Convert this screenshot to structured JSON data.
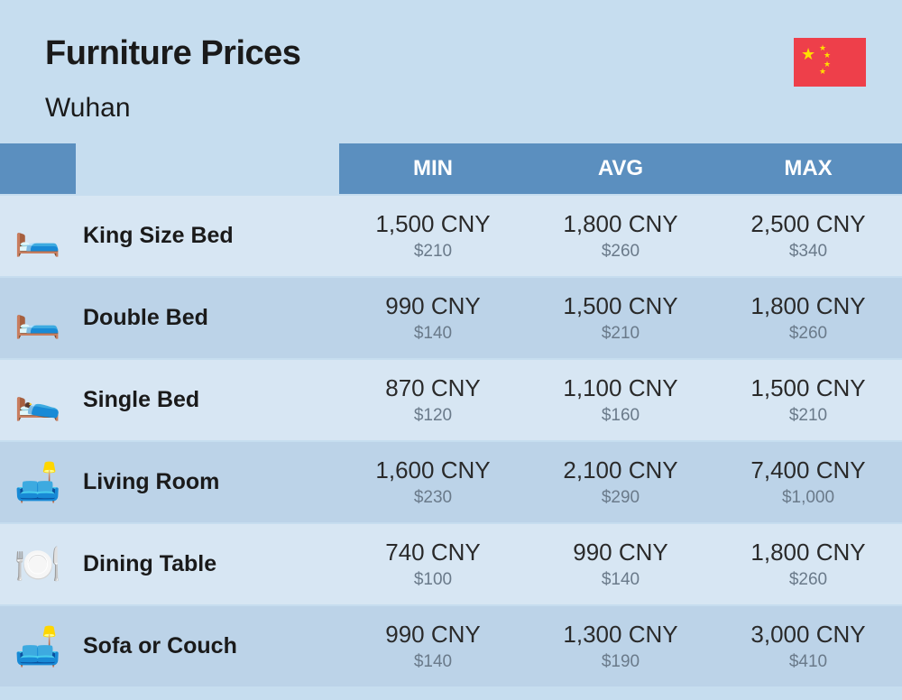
{
  "header": {
    "title": "Furniture Prices",
    "subtitle": "Wuhan",
    "flag_bg": "#ee3f4a",
    "flag_star_color": "#ffde00"
  },
  "table": {
    "columns": [
      "MIN",
      "AVG",
      "MAX"
    ],
    "rows": [
      {
        "icon": "🛏️",
        "name": "King Size Bed",
        "min_main": "1,500 CNY",
        "min_sub": "$210",
        "avg_main": "1,800 CNY",
        "avg_sub": "$260",
        "max_main": "2,500 CNY",
        "max_sub": "$340"
      },
      {
        "icon": "🛏️",
        "name": "Double Bed",
        "min_main": "990 CNY",
        "min_sub": "$140",
        "avg_main": "1,500 CNY",
        "avg_sub": "$210",
        "max_main": "1,800 CNY",
        "max_sub": "$260"
      },
      {
        "icon": "🛌",
        "name": "Single Bed",
        "min_main": "870 CNY",
        "min_sub": "$120",
        "avg_main": "1,100 CNY",
        "avg_sub": "$160",
        "max_main": "1,500 CNY",
        "max_sub": "$210"
      },
      {
        "icon": "🛋️",
        "name": "Living Room",
        "min_main": "1,600 CNY",
        "min_sub": "$230",
        "avg_main": "2,100 CNY",
        "avg_sub": "$290",
        "max_main": "7,400 CNY",
        "max_sub": "$1,000"
      },
      {
        "icon": "🍽️",
        "name": "Dining Table",
        "min_main": "740 CNY",
        "min_sub": "$100",
        "avg_main": "990 CNY",
        "avg_sub": "$140",
        "max_main": "1,800 CNY",
        "max_sub": "$260"
      },
      {
        "icon": "🛋️",
        "name": "Sofa or Couch",
        "min_main": "990 CNY",
        "min_sub": "$140",
        "avg_main": "1,300 CNY",
        "avg_sub": "$190",
        "max_main": "3,000 CNY",
        "max_sub": "$410"
      }
    ],
    "header_bg": "#5b8fbf",
    "header_text": "#ffffff",
    "row_odd_bg": "#d7e6f3",
    "row_even_bg": "#bcd3e8",
    "page_bg": "#c6ddef",
    "main_text_color": "#2a2a2a",
    "sub_text_color": "#6a7a8a",
    "name_text_color": "#1a1a1a",
    "main_fontsize": 26,
    "sub_fontsize": 19,
    "name_fontsize": 25
  }
}
